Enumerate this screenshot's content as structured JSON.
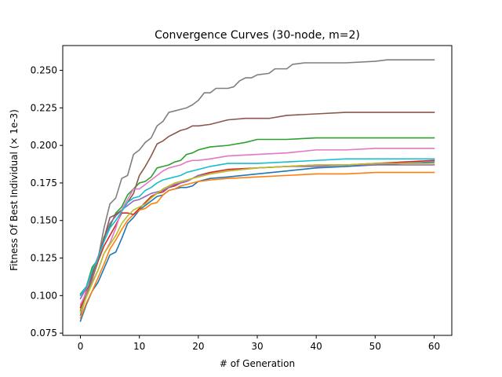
{
  "chart_data": {
    "type": "line",
    "title": "Convergence Curves (30-node, m=2)",
    "xlabel": "# of Generation",
    "ylabel": "Fitness Of Best Individual (× 1e-3)",
    "xlim": [
      -3,
      63
    ],
    "ylim": [
      0.0735,
      0.2665
    ],
    "xticks": [
      0,
      10,
      20,
      30,
      40,
      50,
      60
    ],
    "xtick_labels": [
      "0",
      "10",
      "20",
      "30",
      "40",
      "50",
      "60"
    ],
    "yticks": [
      0.075,
      0.1,
      0.125,
      0.15,
      0.175,
      0.2,
      0.225,
      0.25
    ],
    "ytick_labels": [
      "0.075",
      "0.100",
      "0.125",
      "0.150",
      "0.175",
      "0.200",
      "0.225",
      "0.250"
    ],
    "grid": false,
    "legend": "none",
    "series": [
      {
        "color": "#1f77b4",
        "points": [
          [
            0,
            0.083
          ],
          [
            1,
            0.094
          ],
          [
            2,
            0.103
          ],
          [
            3,
            0.109
          ],
          [
            4,
            0.118
          ],
          [
            5,
            0.127
          ],
          [
            6,
            0.129
          ],
          [
            7,
            0.138
          ],
          [
            8,
            0.148
          ],
          [
            9,
            0.152
          ],
          [
            10,
            0.157
          ],
          [
            11,
            0.16
          ],
          [
            12,
            0.163
          ],
          [
            13,
            0.166
          ],
          [
            14,
            0.167
          ],
          [
            15,
            0.17
          ],
          [
            16,
            0.171
          ],
          [
            17,
            0.172
          ],
          [
            18,
            0.172
          ],
          [
            19,
            0.173
          ],
          [
            20,
            0.176
          ],
          [
            22,
            0.178
          ],
          [
            25,
            0.179
          ],
          [
            30,
            0.181
          ],
          [
            35,
            0.183
          ],
          [
            40,
            0.185
          ],
          [
            45,
            0.186
          ],
          [
            50,
            0.187
          ],
          [
            55,
            0.188
          ],
          [
            60,
            0.189
          ]
        ]
      },
      {
        "color": "#ff7f0e",
        "points": [
          [
            0,
            0.085
          ],
          [
            1,
            0.095
          ],
          [
            2,
            0.103
          ],
          [
            3,
            0.112
          ],
          [
            4,
            0.121
          ],
          [
            5,
            0.131
          ],
          [
            6,
            0.137
          ],
          [
            7,
            0.144
          ],
          [
            8,
            0.15
          ],
          [
            9,
            0.154
          ],
          [
            10,
            0.157
          ],
          [
            11,
            0.158
          ],
          [
            12,
            0.161
          ],
          [
            13,
            0.162
          ],
          [
            14,
            0.167
          ],
          [
            15,
            0.17
          ],
          [
            16,
            0.171
          ],
          [
            17,
            0.173
          ],
          [
            18,
            0.174
          ],
          [
            20,
            0.176
          ],
          [
            22,
            0.177
          ],
          [
            25,
            0.178
          ],
          [
            30,
            0.179
          ],
          [
            35,
            0.18
          ],
          [
            40,
            0.181
          ],
          [
            45,
            0.181
          ],
          [
            50,
            0.182
          ],
          [
            55,
            0.182
          ],
          [
            60,
            0.182
          ]
        ]
      },
      {
        "color": "#2ca02c",
        "points": [
          [
            0,
            0.101
          ],
          [
            1,
            0.106
          ],
          [
            2,
            0.119
          ],
          [
            3,
            0.124
          ],
          [
            4,
            0.139
          ],
          [
            5,
            0.146
          ],
          [
            6,
            0.155
          ],
          [
            7,
            0.159
          ],
          [
            8,
            0.167
          ],
          [
            9,
            0.171
          ],
          [
            10,
            0.175
          ],
          [
            11,
            0.176
          ],
          [
            12,
            0.179
          ],
          [
            13,
            0.185
          ],
          [
            14,
            0.186
          ],
          [
            15,
            0.187
          ],
          [
            16,
            0.189
          ],
          [
            17,
            0.19
          ],
          [
            18,
            0.194
          ],
          [
            19,
            0.195
          ],
          [
            20,
            0.197
          ],
          [
            22,
            0.199
          ],
          [
            25,
            0.2
          ],
          [
            28,
            0.202
          ],
          [
            30,
            0.204
          ],
          [
            35,
            0.204
          ],
          [
            40,
            0.205
          ],
          [
            45,
            0.205
          ],
          [
            50,
            0.205
          ],
          [
            55,
            0.205
          ],
          [
            60,
            0.205
          ]
        ]
      },
      {
        "color": "#d62728",
        "points": [
          [
            0,
            0.092
          ],
          [
            1,
            0.103
          ],
          [
            2,
            0.111
          ],
          [
            3,
            0.123
          ],
          [
            4,
            0.133
          ],
          [
            5,
            0.14
          ],
          [
            6,
            0.147
          ],
          [
            7,
            0.155
          ],
          [
            8,
            0.155
          ],
          [
            9,
            0.154
          ],
          [
            10,
            0.158
          ],
          [
            11,
            0.162
          ],
          [
            12,
            0.166
          ],
          [
            13,
            0.168
          ],
          [
            14,
            0.169
          ],
          [
            15,
            0.172
          ],
          [
            16,
            0.173
          ],
          [
            17,
            0.175
          ],
          [
            18,
            0.176
          ],
          [
            20,
            0.18
          ],
          [
            22,
            0.182
          ],
          [
            25,
            0.184
          ],
          [
            30,
            0.185
          ],
          [
            35,
            0.186
          ],
          [
            40,
            0.187
          ],
          [
            45,
            0.187
          ],
          [
            50,
            0.188
          ],
          [
            55,
            0.189
          ],
          [
            60,
            0.19
          ]
        ]
      },
      {
        "color": "#9467bd",
        "points": [
          [
            0,
            0.098
          ],
          [
            1,
            0.105
          ],
          [
            2,
            0.116
          ],
          [
            3,
            0.126
          ],
          [
            4,
            0.138
          ],
          [
            5,
            0.148
          ],
          [
            6,
            0.153
          ],
          [
            7,
            0.157
          ],
          [
            8,
            0.16
          ],
          [
            9,
            0.163
          ],
          [
            10,
            0.164
          ],
          [
            11,
            0.166
          ],
          [
            12,
            0.168
          ],
          [
            13,
            0.169
          ],
          [
            14,
            0.17
          ],
          [
            15,
            0.172
          ],
          [
            16,
            0.174
          ],
          [
            17,
            0.175
          ],
          [
            18,
            0.176
          ],
          [
            20,
            0.18
          ],
          [
            22,
            0.181
          ],
          [
            25,
            0.183
          ],
          [
            30,
            0.185
          ],
          [
            35,
            0.186
          ],
          [
            40,
            0.186
          ],
          [
            45,
            0.187
          ],
          [
            50,
            0.187
          ],
          [
            55,
            0.187
          ],
          [
            60,
            0.187
          ]
        ]
      },
      {
        "color": "#8c564b",
        "points": [
          [
            0,
            0.09
          ],
          [
            1,
            0.101
          ],
          [
            2,
            0.114
          ],
          [
            3,
            0.125
          ],
          [
            4,
            0.138
          ],
          [
            5,
            0.152
          ],
          [
            6,
            0.154
          ],
          [
            7,
            0.157
          ],
          [
            8,
            0.162
          ],
          [
            9,
            0.168
          ],
          [
            10,
            0.18
          ],
          [
            11,
            0.186
          ],
          [
            12,
            0.193
          ],
          [
            13,
            0.201
          ],
          [
            14,
            0.203
          ],
          [
            15,
            0.206
          ],
          [
            16,
            0.208
          ],
          [
            17,
            0.21
          ],
          [
            18,
            0.211
          ],
          [
            19,
            0.213
          ],
          [
            20,
            0.213
          ],
          [
            22,
            0.214
          ],
          [
            25,
            0.217
          ],
          [
            28,
            0.218
          ],
          [
            30,
            0.218
          ],
          [
            32,
            0.218
          ],
          [
            35,
            0.22
          ],
          [
            40,
            0.221
          ],
          [
            45,
            0.222
          ],
          [
            50,
            0.222
          ],
          [
            55,
            0.222
          ],
          [
            60,
            0.222
          ]
        ]
      },
      {
        "color": "#e377c2",
        "points": [
          [
            0,
            0.094
          ],
          [
            1,
            0.102
          ],
          [
            2,
            0.109
          ],
          [
            3,
            0.117
          ],
          [
            4,
            0.128
          ],
          [
            5,
            0.135
          ],
          [
            6,
            0.145
          ],
          [
            7,
            0.157
          ],
          [
            8,
            0.164
          ],
          [
            9,
            0.171
          ],
          [
            10,
            0.171
          ],
          [
            11,
            0.174
          ],
          [
            12,
            0.177
          ],
          [
            13,
            0.18
          ],
          [
            14,
            0.183
          ],
          [
            15,
            0.185
          ],
          [
            16,
            0.186
          ],
          [
            17,
            0.187
          ],
          [
            18,
            0.189
          ],
          [
            19,
            0.19
          ],
          [
            20,
            0.19
          ],
          [
            22,
            0.191
          ],
          [
            25,
            0.193
          ],
          [
            30,
            0.194
          ],
          [
            35,
            0.195
          ],
          [
            40,
            0.197
          ],
          [
            45,
            0.197
          ],
          [
            50,
            0.198
          ],
          [
            55,
            0.198
          ],
          [
            60,
            0.198
          ]
        ]
      },
      {
        "color": "#7f7f7f",
        "points": [
          [
            0,
            0.087
          ],
          [
            1,
            0.1
          ],
          [
            2,
            0.111
          ],
          [
            3,
            0.125
          ],
          [
            4,
            0.145
          ],
          [
            5,
            0.161
          ],
          [
            6,
            0.165
          ],
          [
            7,
            0.178
          ],
          [
            8,
            0.18
          ],
          [
            9,
            0.194
          ],
          [
            10,
            0.197
          ],
          [
            11,
            0.202
          ],
          [
            12,
            0.205
          ],
          [
            13,
            0.213
          ],
          [
            14,
            0.216
          ],
          [
            15,
            0.222
          ],
          [
            16,
            0.223
          ],
          [
            17,
            0.224
          ],
          [
            18,
            0.225
          ],
          [
            19,
            0.227
          ],
          [
            20,
            0.23
          ],
          [
            21,
            0.235
          ],
          [
            22,
            0.235
          ],
          [
            23,
            0.238
          ],
          [
            25,
            0.238
          ],
          [
            26,
            0.239
          ],
          [
            27,
            0.243
          ],
          [
            28,
            0.245
          ],
          [
            29,
            0.245
          ],
          [
            30,
            0.247
          ],
          [
            32,
            0.248
          ],
          [
            33,
            0.251
          ],
          [
            35,
            0.251
          ],
          [
            36,
            0.254
          ],
          [
            38,
            0.255
          ],
          [
            40,
            0.255
          ],
          [
            45,
            0.255
          ],
          [
            50,
            0.256
          ],
          [
            52,
            0.257
          ],
          [
            55,
            0.257
          ],
          [
            58,
            0.257
          ],
          [
            60,
            0.257
          ]
        ]
      },
      {
        "color": "#bcbd22",
        "points": [
          [
            0,
            0.089
          ],
          [
            1,
            0.099
          ],
          [
            2,
            0.108
          ],
          [
            3,
            0.117
          ],
          [
            4,
            0.128
          ],
          [
            5,
            0.134
          ],
          [
            6,
            0.14
          ],
          [
            7,
            0.148
          ],
          [
            8,
            0.153
          ],
          [
            9,
            0.157
          ],
          [
            10,
            0.159
          ],
          [
            11,
            0.161
          ],
          [
            12,
            0.165
          ],
          [
            13,
            0.168
          ],
          [
            14,
            0.171
          ],
          [
            15,
            0.173
          ],
          [
            16,
            0.175
          ],
          [
            17,
            0.176
          ],
          [
            18,
            0.177
          ],
          [
            20,
            0.179
          ],
          [
            22,
            0.181
          ],
          [
            25,
            0.183
          ],
          [
            30,
            0.185
          ],
          [
            35,
            0.186
          ],
          [
            40,
            0.187
          ],
          [
            45,
            0.187
          ],
          [
            50,
            0.188
          ],
          [
            55,
            0.188
          ],
          [
            60,
            0.188
          ]
        ]
      },
      {
        "color": "#17becf",
        "points": [
          [
            0,
            0.1
          ],
          [
            1,
            0.106
          ],
          [
            2,
            0.117
          ],
          [
            3,
            0.125
          ],
          [
            4,
            0.136
          ],
          [
            5,
            0.145
          ],
          [
            6,
            0.15
          ],
          [
            7,
            0.156
          ],
          [
            8,
            0.162
          ],
          [
            9,
            0.165
          ],
          [
            10,
            0.166
          ],
          [
            11,
            0.17
          ],
          [
            12,
            0.172
          ],
          [
            13,
            0.175
          ],
          [
            14,
            0.177
          ],
          [
            15,
            0.178
          ],
          [
            16,
            0.179
          ],
          [
            17,
            0.18
          ],
          [
            18,
            0.182
          ],
          [
            20,
            0.184
          ],
          [
            22,
            0.186
          ],
          [
            25,
            0.188
          ],
          [
            30,
            0.188
          ],
          [
            35,
            0.189
          ],
          [
            40,
            0.19
          ],
          [
            45,
            0.191
          ],
          [
            50,
            0.191
          ],
          [
            55,
            0.191
          ],
          [
            60,
            0.191
          ]
        ]
      }
    ]
  }
}
